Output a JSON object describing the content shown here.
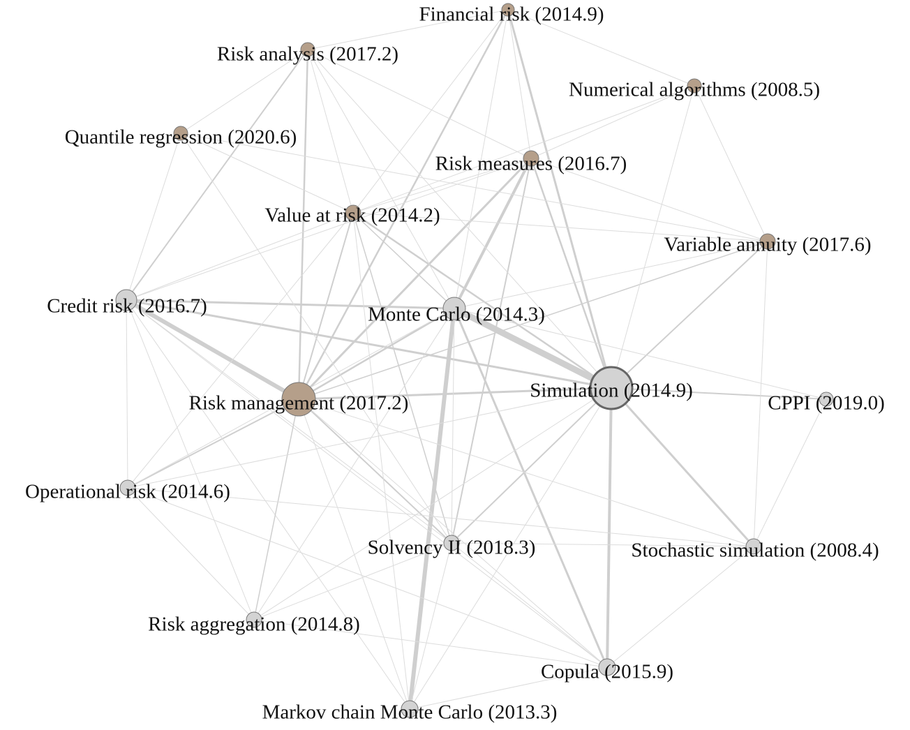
{
  "nodes": [
    {
      "label": "Financial risk (2014.9)"
    },
    {
      "label": "Risk analysis (2017.2)"
    },
    {
      "label": "Numerical algorithms (2008.5)"
    },
    {
      "label": "Quantile regression (2020.6)"
    },
    {
      "label": "Risk measures (2016.7)"
    },
    {
      "label": "Value at risk (2014.2)"
    },
    {
      "label": "Variable annuity (2017.6)"
    },
    {
      "label": "Credit risk (2016.7)"
    },
    {
      "label": "Monte Carlo (2014.3)"
    },
    {
      "label": "Risk management (2017.2)"
    },
    {
      "label": "Simulation (2014.9)"
    },
    {
      "label": "CPPI (2019.0)"
    },
    {
      "label": "Operational risk (2014.6)"
    },
    {
      "label": "Solvency II (2018.3)"
    },
    {
      "label": "Stochastic simulation (2008.4)"
    },
    {
      "label": "Risk aggregation (2014.8)"
    },
    {
      "label": "Copula (2015.9)"
    },
    {
      "label": "Markov chain Monte Carlo (2013.3)"
    }
  ]
}
